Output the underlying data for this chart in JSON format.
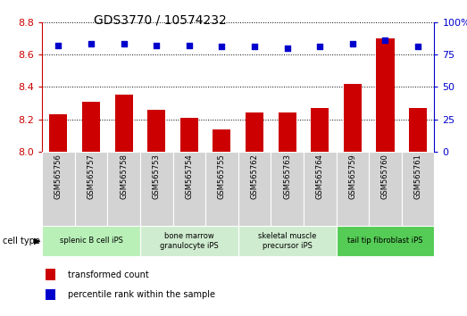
{
  "title": "GDS3770 / 10574232",
  "samples": [
    "GSM565756",
    "GSM565757",
    "GSM565758",
    "GSM565753",
    "GSM565754",
    "GSM565755",
    "GSM565762",
    "GSM565763",
    "GSM565764",
    "GSM565759",
    "GSM565760",
    "GSM565761"
  ],
  "transformed_count": [
    8.23,
    8.31,
    8.35,
    8.26,
    8.21,
    8.14,
    8.24,
    8.24,
    8.27,
    8.42,
    8.7,
    8.27
  ],
  "percentile_rank": [
    82,
    83,
    83,
    82,
    82,
    81,
    81,
    80,
    81,
    83,
    86,
    81
  ],
  "ylim_left": [
    8.0,
    8.8
  ],
  "ylim_right": [
    0,
    100
  ],
  "yticks_left": [
    8.0,
    8.2,
    8.4,
    8.6,
    8.8
  ],
  "yticks_right": [
    0,
    25,
    50,
    75,
    100
  ],
  "bar_color": "#cc0000",
  "scatter_color": "#0000cc",
  "cell_types": [
    {
      "label": "splenic B cell iPS",
      "start": 0,
      "end": 3,
      "color": "#b8f0b8"
    },
    {
      "label": "bone marrow\ngranulocyte iPS",
      "start": 3,
      "end": 6,
      "color": "#d0ecd0"
    },
    {
      "label": "skeletal muscle\nprecursor iPS",
      "start": 6,
      "end": 9,
      "color": "#d0ecd0"
    },
    {
      "label": "tail tip fibroblast iPS",
      "start": 9,
      "end": 12,
      "color": "#55cc55"
    }
  ],
  "legend_items": [
    {
      "label": "transformed count",
      "color": "#cc0000"
    },
    {
      "label": "percentile rank within the sample",
      "color": "#0000cc"
    }
  ],
  "cell_type_label": "cell type"
}
